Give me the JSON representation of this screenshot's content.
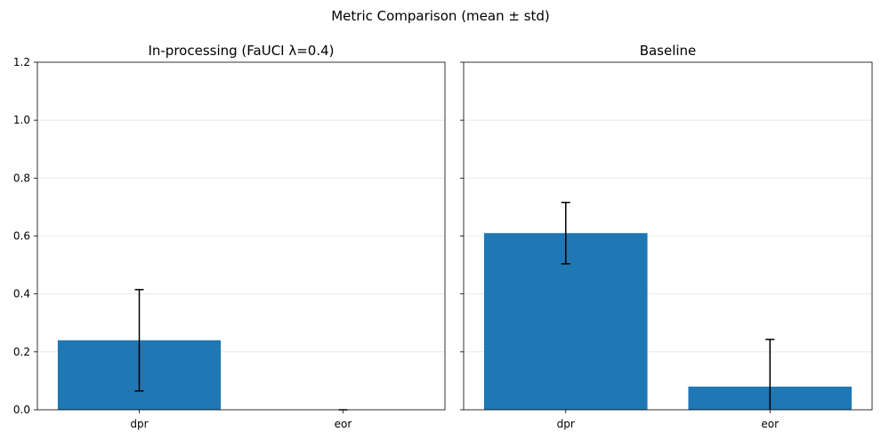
{
  "chart_data": {
    "type": "bar",
    "suptitle": "Metric Comparison (mean ± std)",
    "color": "#1f77b4",
    "grid": "y",
    "sharey": true,
    "ylim": [
      0,
      1.2
    ],
    "yticks": [
      0.0,
      0.2,
      0.4,
      0.6,
      0.8,
      1.0,
      1.2
    ],
    "ytick_labels": [
      "0.0",
      "0.2",
      "0.4",
      "0.6",
      "0.8",
      "1.0",
      "1.2"
    ],
    "panels": [
      {
        "title": "In-processing (FaUCI λ=0.4)",
        "categories": [
          "dpr",
          "eor"
        ],
        "values": [
          0.24,
          0.0
        ],
        "errors": [
          0.175,
          0.0
        ]
      },
      {
        "title": "Baseline",
        "categories": [
          "dpr",
          "eor"
        ],
        "values": [
          0.61,
          0.08
        ],
        "errors": [
          0.106,
          0.163
        ]
      }
    ]
  }
}
